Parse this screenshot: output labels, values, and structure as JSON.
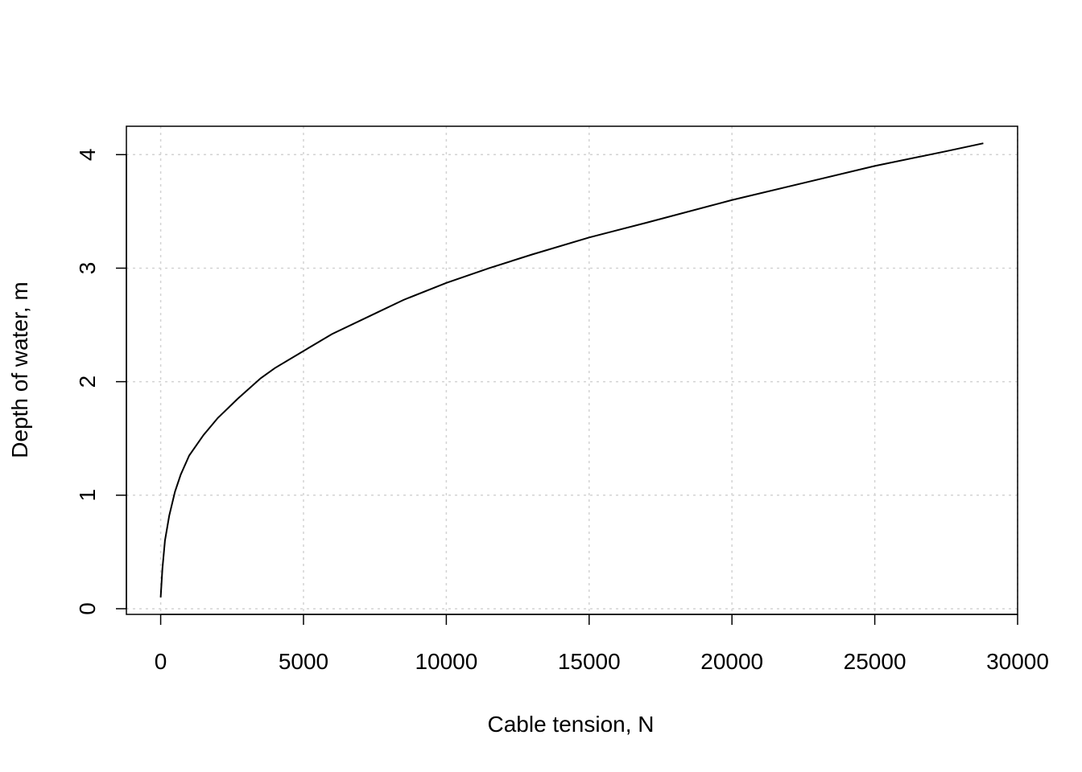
{
  "chart_data": {
    "type": "line",
    "title": "",
    "xlabel": "Cable tension, N",
    "ylabel": "Depth of water, m",
    "xlim": [
      -1200,
      30000
    ],
    "ylim": [
      -0.05,
      4.25
    ],
    "xticks": [
      0,
      5000,
      10000,
      15000,
      20000,
      25000,
      30000
    ],
    "xtick_labels": [
      "0",
      "5000",
      "10000",
      "15000",
      "20000",
      "25000",
      "30000"
    ],
    "yticks": [
      0,
      1,
      2,
      3,
      4
    ],
    "ytick_labels": [
      "0",
      "1",
      "2",
      "3",
      "4"
    ],
    "grid": true,
    "legend": "none",
    "series": [
      {
        "color": "#000000",
        "x": [
          0,
          60,
          150,
          300,
          500,
          700,
          1000,
          1500,
          2000,
          2700,
          3500,
          4000,
          5000,
          6000,
          7500,
          8500,
          10000,
          11500,
          13000,
          15000,
          17000,
          20000,
          22500,
          25000,
          27500,
          28800
        ],
        "y": [
          0.1,
          0.35,
          0.6,
          0.82,
          1.03,
          1.18,
          1.35,
          1.53,
          1.68,
          1.85,
          2.03,
          2.12,
          2.27,
          2.42,
          2.6,
          2.72,
          2.87,
          3.0,
          3.12,
          3.27,
          3.4,
          3.6,
          3.75,
          3.9,
          4.03,
          4.1
        ]
      }
    ]
  }
}
